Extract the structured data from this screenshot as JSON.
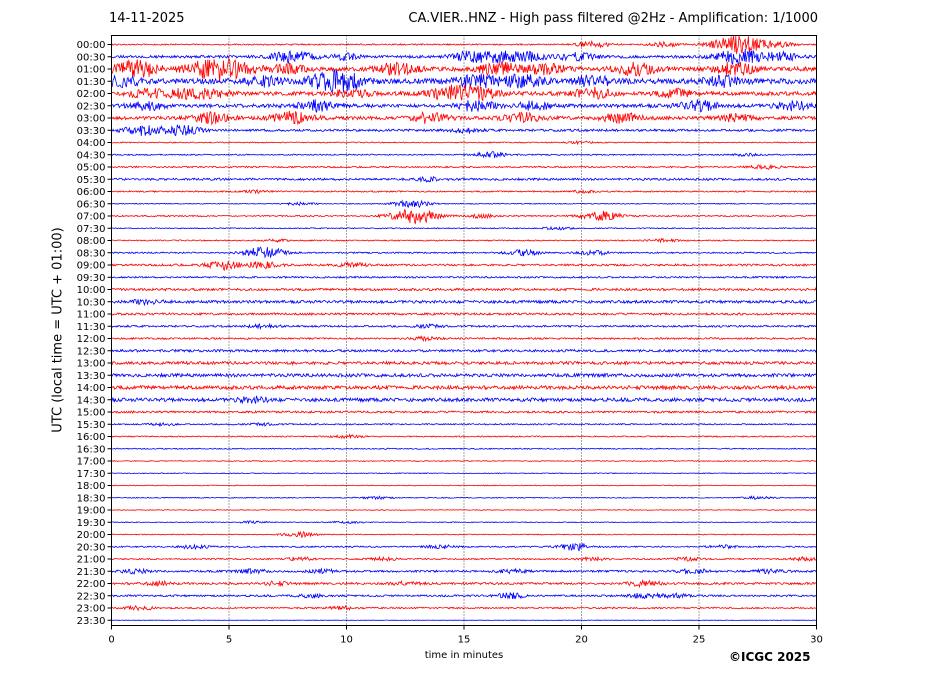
{
  "header": {
    "date": "14-11-2025",
    "station_title": "CA.VIER..HNZ - High pass filtered @2Hz - Amplification: 1/1000"
  },
  "footer": {
    "copyright": "©ICGC 2025"
  },
  "colors": {
    "odd_trace": "#ff0000",
    "even_trace": "#0000ff",
    "grid": "#000000"
  },
  "chart_data": {
    "type": "line",
    "title": "CA.VIER..HNZ - High pass filtered @2Hz - Amplification: 1/1000",
    "xlabel": "time in minutes",
    "ylabel": "UTC (local time = UTC + 01:00)",
    "xlim": [
      0,
      30
    ],
    "x_ticks": [
      "0",
      "5",
      "10",
      "15",
      "20",
      "25",
      "30"
    ],
    "grid": "vertical dotted at 5-minute intervals",
    "rows": [
      {
        "label": "00:00",
        "level": 0.3,
        "events": [
          [
            20.5,
            1.5
          ],
          [
            23.5,
            1.2
          ],
          [
            26.7,
            5
          ],
          [
            28.5,
            1
          ]
        ]
      },
      {
        "label": "00:30",
        "level": 0.7,
        "events": [
          [
            7.7,
            3
          ],
          [
            10,
            1.5
          ],
          [
            15.2,
            2.5
          ],
          [
            16.5,
            2.5
          ],
          [
            17.8,
            2
          ],
          [
            19.8,
            2
          ],
          [
            26.7,
            4
          ],
          [
            28.5,
            2
          ]
        ]
      },
      {
        "label": "01:00",
        "level": 1.2,
        "events": [
          [
            1.1,
            4
          ],
          [
            4.6,
            6
          ],
          [
            7.5,
            2
          ],
          [
            12.1,
            3
          ],
          [
            16.5,
            3
          ],
          [
            18.5,
            2.5
          ],
          [
            22.3,
            3
          ],
          [
            26.5,
            3
          ]
        ]
      },
      {
        "label": "01:30",
        "level": 1.5,
        "events": [
          [
            0.5,
            2
          ],
          [
            6.5,
            2
          ],
          [
            9.3,
            4
          ],
          [
            10,
            2.5
          ],
          [
            15.5,
            3
          ],
          [
            17.5,
            3
          ],
          [
            20.5,
            2.5
          ],
          [
            26,
            2.5
          ]
        ]
      },
      {
        "label": "02:00",
        "level": 1.1,
        "events": [
          [
            1.5,
            2
          ],
          [
            3,
            2
          ],
          [
            4.2,
            2
          ],
          [
            10.2,
            2
          ],
          [
            14.5,
            3.5
          ],
          [
            15.7,
            2.5
          ],
          [
            20.5,
            2.5
          ],
          [
            24,
            2
          ]
        ]
      },
      {
        "label": "02:30",
        "level": 1.0,
        "events": [
          [
            1.5,
            2
          ],
          [
            8.7,
            2.5
          ],
          [
            15.5,
            2.5
          ],
          [
            18,
            2
          ],
          [
            25,
            2.5
          ],
          [
            29,
            2
          ]
        ]
      },
      {
        "label": "03:00",
        "level": 0.9,
        "events": [
          [
            4.3,
            2.5
          ],
          [
            7.7,
            3
          ],
          [
            13.5,
            2.5
          ],
          [
            17.5,
            2.5
          ],
          [
            21.7,
            2.5
          ],
          [
            26.5,
            2
          ]
        ]
      },
      {
        "label": "03:30",
        "level": 0.6,
        "events": [
          [
            1.3,
            2.5
          ],
          [
            3,
            2.5
          ],
          [
            15,
            1
          ]
        ]
      },
      {
        "label": "04:00",
        "level": 0.2,
        "events": [
          [
            20,
            0.6
          ]
        ]
      },
      {
        "label": "04:30",
        "level": 0.25,
        "events": [
          [
            16.2,
            1.5
          ],
          [
            27,
            0.6
          ]
        ]
      },
      {
        "label": "05:00",
        "level": 0.35,
        "events": [
          [
            27.8,
            1
          ]
        ]
      },
      {
        "label": "05:30",
        "level": 0.55,
        "events": [
          [
            13.5,
            0.9
          ]
        ]
      },
      {
        "label": "06:00",
        "level": 0.3,
        "events": [
          [
            6.2,
            0.6
          ],
          [
            20,
            0.6
          ]
        ]
      },
      {
        "label": "06:30",
        "level": 0.15,
        "events": [
          [
            8,
            0.7
          ],
          [
            12.8,
            2
          ]
        ]
      },
      {
        "label": "07:00",
        "level": 0.3,
        "events": [
          [
            12.9,
            4
          ],
          [
            15.7,
            0.9
          ],
          [
            20.8,
            2.5
          ]
        ]
      },
      {
        "label": "07:30",
        "level": 0.2,
        "events": [
          [
            18.9,
            0.8
          ]
        ]
      },
      {
        "label": "08:00",
        "level": 0.25,
        "events": [
          [
            7,
            0.6
          ],
          [
            23.5,
            0.7
          ]
        ]
      },
      {
        "label": "08:30",
        "level": 0.3,
        "events": [
          [
            6.5,
            3
          ],
          [
            17.5,
            1.5
          ],
          [
            20.5,
            1.2
          ]
        ]
      },
      {
        "label": "09:00",
        "level": 0.5,
        "events": [
          [
            4.8,
            2.2
          ],
          [
            6.4,
            1.6
          ],
          [
            10.2,
            1
          ]
        ]
      },
      {
        "label": "09:30",
        "level": 0.4,
        "events": []
      },
      {
        "label": "10:00",
        "level": 0.6,
        "events": []
      },
      {
        "label": "10:30",
        "level": 0.75,
        "events": [
          [
            1.5,
            1
          ]
        ]
      },
      {
        "label": "11:00",
        "level": 0.55,
        "events": []
      },
      {
        "label": "11:30",
        "level": 0.45,
        "events": [
          [
            6.5,
            0.8
          ],
          [
            13.5,
            0.7
          ]
        ]
      },
      {
        "label": "12:00",
        "level": 0.4,
        "events": [
          [
            13.3,
            0.8
          ]
        ]
      },
      {
        "label": "12:30",
        "level": 0.6,
        "events": []
      },
      {
        "label": "13:00",
        "level": 0.8,
        "events": []
      },
      {
        "label": "13:30",
        "level": 0.9,
        "events": []
      },
      {
        "label": "14:00",
        "level": 1.0,
        "events": []
      },
      {
        "label": "14:30",
        "level": 0.95,
        "events": [
          [
            6,
            1.3
          ]
        ]
      },
      {
        "label": "15:00",
        "level": 0.5,
        "events": []
      },
      {
        "label": "15:30",
        "level": 0.3,
        "events": [
          [
            2.2,
            0.6
          ],
          [
            6.5,
            0.6
          ]
        ]
      },
      {
        "label": "16:00",
        "level": 0.25,
        "events": [
          [
            10,
            0.7
          ]
        ]
      },
      {
        "label": "16:30",
        "level": 0.2,
        "events": []
      },
      {
        "label": "17:00",
        "level": 0.15,
        "events": []
      },
      {
        "label": "17:30",
        "level": 0.12,
        "events": []
      },
      {
        "label": "18:00",
        "level": 0.12,
        "events": []
      },
      {
        "label": "18:30",
        "level": 0.15,
        "events": [
          [
            11.3,
            0.7
          ],
          [
            27.5,
            0.7
          ]
        ]
      },
      {
        "label": "19:00",
        "level": 0.1,
        "events": []
      },
      {
        "label": "19:30",
        "level": 0.12,
        "events": [
          [
            6,
            0.6
          ],
          [
            10,
            0.6
          ]
        ]
      },
      {
        "label": "20:00",
        "level": 0.15,
        "events": [
          [
            8,
            1.3
          ]
        ]
      },
      {
        "label": "20:30",
        "level": 0.3,
        "events": [
          [
            3.5,
            0.9
          ],
          [
            14,
            0.9
          ],
          [
            19.8,
            1.8
          ],
          [
            26,
            0.8
          ]
        ]
      },
      {
        "label": "21:00",
        "level": 0.3,
        "events": [
          [
            8,
            0.9
          ],
          [
            11.5,
            0.8
          ],
          [
            20.5,
            0.8
          ],
          [
            24.5,
            0.8
          ],
          [
            29.5,
            1
          ]
        ]
      },
      {
        "label": "21:30",
        "level": 0.5,
        "events": [
          [
            1,
            1
          ],
          [
            6,
            0.9
          ],
          [
            9,
            0.9
          ],
          [
            17,
            0.9
          ],
          [
            24.8,
            1.1
          ],
          [
            28,
            0.8
          ]
        ]
      },
      {
        "label": "22:00",
        "level": 0.55,
        "events": [
          [
            2,
            0.9
          ],
          [
            7,
            0.8
          ],
          [
            12.5,
            0.8
          ],
          [
            22.7,
            1.4
          ]
        ]
      },
      {
        "label": "22:30",
        "level": 0.45,
        "events": [
          [
            8.5,
            0.8
          ],
          [
            17,
            1.3
          ],
          [
            22.7,
            1.2
          ],
          [
            24,
            0.9
          ]
        ]
      },
      {
        "label": "23:00",
        "level": 0.35,
        "events": [
          [
            1.2,
            1
          ],
          [
            9.8,
            0.8
          ]
        ]
      },
      {
        "label": "23:30",
        "level": 0.0,
        "events": []
      }
    ]
  }
}
